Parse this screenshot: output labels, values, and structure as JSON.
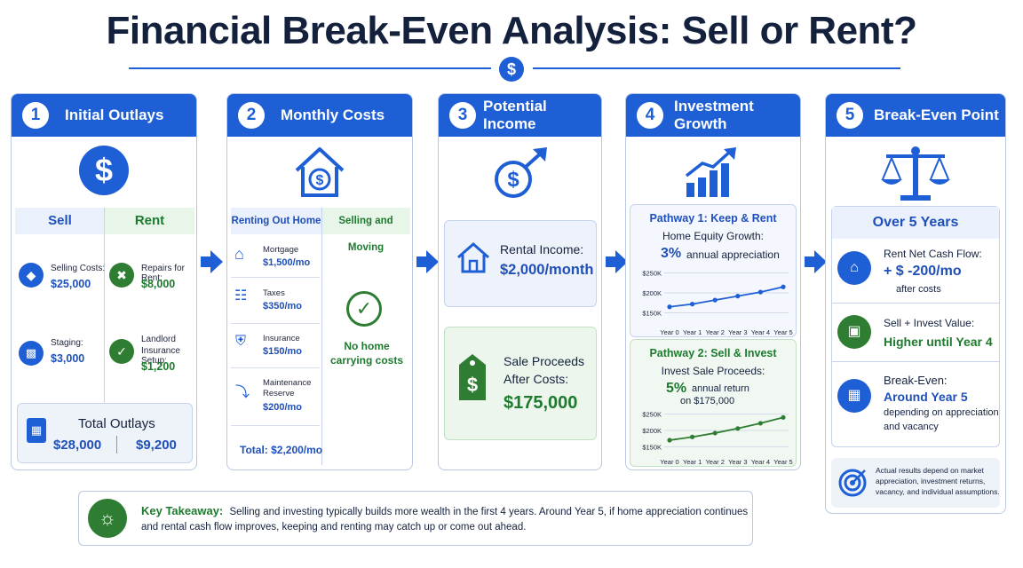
{
  "title": "Financial Break-Even Analysis: Sell or Rent?",
  "colors": {
    "primary": "#1f5fd6",
    "green": "#2e7d32",
    "light_blue": "#eaf1fc",
    "light_green": "#e8f5e9"
  },
  "steps": [
    {
      "number": "1",
      "title": "Initial Outlays"
    },
    {
      "number": "2",
      "title": "Monthly Costs"
    },
    {
      "number": "3",
      "title": "Potential Income"
    },
    {
      "number": "4",
      "title": "Investment Growth"
    },
    {
      "number": "5",
      "title": "Break-Even Point"
    }
  ],
  "initial_outlays": {
    "icon": "dollar-circle-icon",
    "sell_header": "Sell",
    "rent_header": "Rent",
    "sell_items": [
      {
        "icon": "price-tag-icon",
        "label": "Selling Costs:",
        "value": "$25,000"
      },
      {
        "icon": "sofa-icon",
        "label": "Staging:",
        "value": "$3,000"
      }
    ],
    "rent_items": [
      {
        "icon": "tools-icon",
        "label": "Repairs for Rent:",
        "value": "$8,000"
      },
      {
        "icon": "shield-check-icon",
        "label_line1": "Landlord",
        "label_line2": "Insurance Setup:",
        "value": "$1,200"
      }
    ],
    "total_label": "Total Outlays",
    "total_sell": "$28,000",
    "total_rent": "$9,200"
  },
  "monthly_costs": {
    "icon": "house-dollar-icon",
    "left_header": "Renting Out Home",
    "right_header": "Selling and Moving",
    "items": [
      {
        "icon": "house-icon",
        "label": "Mortgage",
        "value": "$1,500/mo"
      },
      {
        "icon": "bank-icon",
        "label": "Taxes",
        "value": "$350/mo"
      },
      {
        "icon": "shield-icon",
        "label": "Insurance",
        "value": "$150/mo"
      },
      {
        "icon": "wrench-icon",
        "label_line1": "Maintenance",
        "label_line2": "Reserve",
        "value": "$200/mo"
      }
    ],
    "total": "Total: $2,200/mo",
    "no_costs_line1": "No home",
    "no_costs_line2": "carrying costs"
  },
  "potential_income": {
    "icon": "dollar-arrow-icon",
    "rental_label": "Rental Income:",
    "rental_value": "$2,000/month",
    "sale_label_line1": "Sale Proceeds",
    "sale_label_line2": "After Costs:",
    "sale_value": "$175,000"
  },
  "investment_growth": {
    "icon": "bar-chart-growth-icon",
    "pathway1": {
      "title": "Pathway 1: Keep & Rent",
      "subtitle": "Home Equity Growth:",
      "rate": "3%",
      "rate_desc": "annual appreciation"
    },
    "pathway2": {
      "title": "Pathway 2: Sell & Invest",
      "subtitle": "Invest Sale Proceeds:",
      "rate": "5%",
      "rate_desc": "annual return",
      "rate_desc2": "on $175,000"
    }
  },
  "chart_data": [
    {
      "type": "line",
      "x": [
        "Year 0",
        "Year 1",
        "Year 2",
        "Year 3",
        "Year 4",
        "Year 5"
      ],
      "series": [
        {
          "values": [
            165000,
            172000,
            182000,
            192000,
            202000,
            215000
          ]
        }
      ],
      "y_ticks": [
        "$250K",
        "$200K",
        "$150K"
      ],
      "ylim": [
        140000,
        260000
      ],
      "color": "#1f5fd6"
    },
    {
      "type": "line",
      "x": [
        "Year 0",
        "Year 1",
        "Year 2",
        "Year 3",
        "Year 4",
        "Year 5"
      ],
      "series": [
        {
          "values": [
            170000,
            180000,
            192000,
            206000,
            222000,
            240000
          ]
        }
      ],
      "y_ticks": [
        "$250K",
        "$200K",
        "$150K"
      ],
      "ylim": [
        140000,
        260000
      ],
      "color": "#2e7d32"
    }
  ],
  "break_even": {
    "icon": "balance-scale-icon",
    "over_label": "Over 5 Years",
    "rent_flow_label": "Rent Net Cash Flow:",
    "rent_flow_value": "+ $ -200/mo",
    "rent_flow_note": "after costs",
    "sell_label": "Sell + Invest Value:",
    "sell_value": "Higher until Year 4",
    "be_label": "Break-Even:",
    "be_value": "Around Year 5",
    "be_note1": "depending on appreciation",
    "be_note2": "and vacancy",
    "disclaimer_line1": "Actual results depend on market",
    "disclaimer_line2": "appreciation, investment returns,",
    "disclaimer_line3": "vacancy, and individual assumptions."
  },
  "takeaway": {
    "icon": "lightbulb-icon",
    "label": "Key Takeaway:",
    "line1": "Selling and investing typically builds more wealth in the first 4 years. Around Year 5, if home appreciation continues",
    "line2": "and rental cash flow improves, keeping and renting may catch up or come out ahead."
  }
}
